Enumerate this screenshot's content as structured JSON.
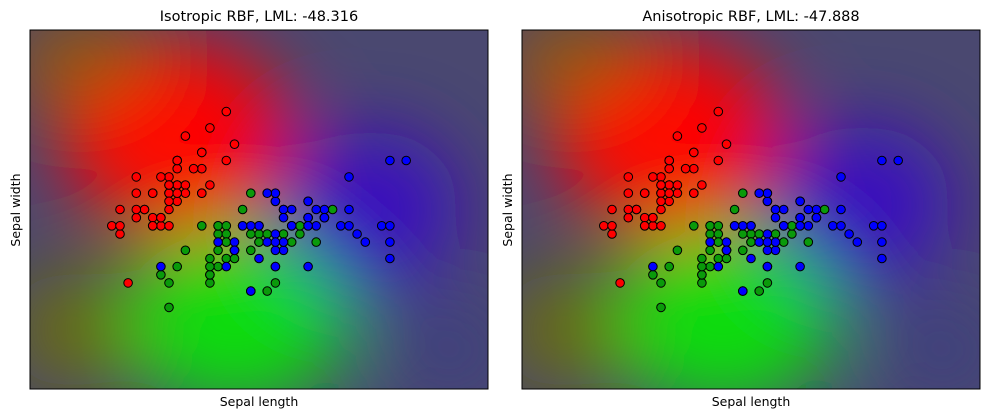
{
  "chart_data": [
    {
      "type": "scatter",
      "title": "Isotropic RBF, LML: -48.316",
      "xlabel": "Sepal length",
      "ylabel": "Sepal width",
      "xlim": [
        3.3,
        8.9
      ],
      "ylim": [
        1.0,
        5.4
      ],
      "xticks": "none",
      "yticks": "none",
      "background": "gaussian process classifier class probability map (R = class 0, G = class 1, B = class 2)",
      "series_colors": {
        "class0": "#ff0000",
        "class1": "#00b000",
        "class2": "#0000ff"
      }
    },
    {
      "type": "scatter",
      "title": "Anisotropic RBF, LML: -47.888",
      "xlabel": "Sepal length",
      "ylabel": "Sepal width",
      "xlim": [
        3.3,
        8.9
      ],
      "ylim": [
        1.0,
        5.4
      ],
      "xticks": "none",
      "yticks": "none",
      "background": "gaussian process classifier class probability map (R = class 0, G = class 1, B = class 2)",
      "series_colors": {
        "class0": "#ff0000",
        "class1": "#00b000",
        "class2": "#0000ff"
      }
    }
  ],
  "points": {
    "class0": [
      [
        5.1,
        3.5
      ],
      [
        4.9,
        3.0
      ],
      [
        4.7,
        3.2
      ],
      [
        4.6,
        3.1
      ],
      [
        5.0,
        3.6
      ],
      [
        5.4,
        3.9
      ],
      [
        4.6,
        3.4
      ],
      [
        5.0,
        3.4
      ],
      [
        4.4,
        2.9
      ],
      [
        4.9,
        3.1
      ],
      [
        5.4,
        3.7
      ],
      [
        4.8,
        3.4
      ],
      [
        4.8,
        3.0
      ],
      [
        4.3,
        3.0
      ],
      [
        5.8,
        4.0
      ],
      [
        5.7,
        4.4
      ],
      [
        5.4,
        3.9
      ],
      [
        5.1,
        3.5
      ],
      [
        5.7,
        3.8
      ],
      [
        5.1,
        3.8
      ],
      [
        5.4,
        3.4
      ],
      [
        5.1,
        3.7
      ],
      [
        4.6,
        3.6
      ],
      [
        5.1,
        3.3
      ],
      [
        4.8,
        3.4
      ],
      [
        5.0,
        3.0
      ],
      [
        5.0,
        3.4
      ],
      [
        5.2,
        3.5
      ],
      [
        5.2,
        3.4
      ],
      [
        4.7,
        3.2
      ],
      [
        4.8,
        3.1
      ],
      [
        5.4,
        3.4
      ],
      [
        5.2,
        4.1
      ],
      [
        5.5,
        4.2
      ],
      [
        4.9,
        3.1
      ],
      [
        5.0,
        3.2
      ],
      [
        5.5,
        3.5
      ],
      [
        4.9,
        3.6
      ],
      [
        4.4,
        3.0
      ],
      [
        5.1,
        3.4
      ],
      [
        5.0,
        3.5
      ],
      [
        4.5,
        2.3
      ],
      [
        4.4,
        3.2
      ],
      [
        5.0,
        3.5
      ],
      [
        5.1,
        3.8
      ],
      [
        4.8,
        3.0
      ],
      [
        5.1,
        3.8
      ],
      [
        4.6,
        3.2
      ],
      [
        5.3,
        3.7
      ],
      [
        5.0,
        3.3
      ]
    ],
    "class1": [
      [
        7.0,
        3.2
      ],
      [
        6.4,
        3.2
      ],
      [
        6.9,
        3.1
      ],
      [
        5.5,
        2.3
      ],
      [
        6.5,
        2.8
      ],
      [
        5.7,
        2.8
      ],
      [
        6.3,
        3.3
      ],
      [
        4.9,
        2.4
      ],
      [
        6.6,
        2.9
      ],
      [
        5.2,
        2.7
      ],
      [
        5.0,
        2.0
      ],
      [
        5.9,
        3.0
      ],
      [
        6.0,
        2.2
      ],
      [
        6.1,
        2.9
      ],
      [
        5.6,
        2.9
      ],
      [
        6.7,
        3.1
      ],
      [
        5.6,
        3.0
      ],
      [
        5.8,
        2.7
      ],
      [
        6.2,
        2.2
      ],
      [
        5.6,
        2.5
      ],
      [
        5.9,
        3.2
      ],
      [
        6.1,
        2.8
      ],
      [
        6.3,
        2.5
      ],
      [
        6.1,
        2.8
      ],
      [
        6.4,
        2.9
      ],
      [
        6.6,
        3.0
      ],
      [
        6.8,
        2.8
      ],
      [
        6.7,
        3.0
      ],
      [
        6.0,
        2.9
      ],
      [
        5.7,
        2.6
      ],
      [
        5.5,
        2.4
      ],
      [
        5.5,
        2.4
      ],
      [
        5.8,
        2.7
      ],
      [
        6.0,
        2.7
      ],
      [
        5.4,
        3.0
      ],
      [
        6.0,
        3.4
      ],
      [
        6.7,
        3.1
      ],
      [
        6.3,
        2.3
      ],
      [
        5.6,
        3.0
      ],
      [
        5.5,
        2.5
      ],
      [
        5.5,
        2.6
      ],
      [
        6.1,
        3.0
      ],
      [
        5.8,
        2.6
      ],
      [
        5.0,
        2.3
      ],
      [
        5.6,
        2.7
      ],
      [
        5.7,
        3.0
      ],
      [
        5.7,
        2.9
      ],
      [
        6.2,
        2.9
      ],
      [
        5.1,
        2.5
      ],
      [
        5.7,
        2.8
      ]
    ],
    "class2": [
      [
        6.3,
        3.3
      ],
      [
        5.8,
        2.7
      ],
      [
        7.1,
        3.0
      ],
      [
        6.3,
        2.9
      ],
      [
        6.5,
        3.0
      ],
      [
        7.6,
        3.0
      ],
      [
        4.9,
        2.5
      ],
      [
        7.3,
        2.9
      ],
      [
        6.7,
        2.5
      ],
      [
        7.2,
        3.6
      ],
      [
        6.5,
        3.2
      ],
      [
        6.4,
        2.7
      ],
      [
        6.8,
        3.0
      ],
      [
        5.7,
        2.5
      ],
      [
        5.8,
        2.8
      ],
      [
        6.4,
        3.2
      ],
      [
        6.5,
        3.0
      ],
      [
        7.7,
        3.8
      ],
      [
        7.7,
        2.6
      ],
      [
        6.0,
        2.2
      ],
      [
        6.9,
        3.2
      ],
      [
        5.6,
        2.8
      ],
      [
        7.7,
        2.8
      ],
      [
        6.3,
        2.7
      ],
      [
        6.7,
        3.3
      ],
      [
        7.2,
        3.2
      ],
      [
        6.2,
        2.8
      ],
      [
        6.1,
        3.0
      ],
      [
        6.4,
        2.8
      ],
      [
        7.2,
        3.0
      ],
      [
        7.4,
        2.8
      ],
      [
        7.9,
        3.8
      ],
      [
        6.4,
        2.8
      ],
      [
        6.3,
        2.8
      ],
      [
        6.1,
        2.6
      ],
      [
        7.7,
        3.0
      ],
      [
        6.3,
        3.4
      ],
      [
        6.4,
        3.1
      ],
      [
        6.0,
        3.0
      ],
      [
        6.9,
        3.1
      ],
      [
        6.7,
        3.1
      ],
      [
        6.9,
        3.1
      ],
      [
        5.8,
        2.7
      ],
      [
        6.8,
        3.2
      ],
      [
        6.7,
        3.3
      ],
      [
        6.7,
        3.0
      ],
      [
        6.3,
        2.5
      ],
      [
        6.5,
        3.0
      ],
      [
        6.2,
        3.4
      ],
      [
        5.9,
        3.0
      ]
    ]
  }
}
